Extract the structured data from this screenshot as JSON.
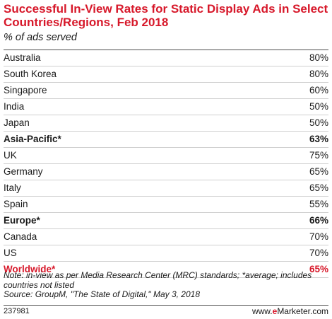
{
  "chart_data": {
    "type": "table",
    "title": "Successful In-View Rates for Static Display Ads in Select Countries/Regions, Feb 2018",
    "subtitle": "% of ads served",
    "rows": [
      {
        "label": "Australia",
        "value": "80%",
        "style": "normal"
      },
      {
        "label": "South Korea",
        "value": "80%",
        "style": "normal"
      },
      {
        "label": "Singapore",
        "value": "60%",
        "style": "normal"
      },
      {
        "label": "India",
        "value": "50%",
        "style": "normal"
      },
      {
        "label": "Japan",
        "value": "50%",
        "style": "normal"
      },
      {
        "label": "Asia-Pacific*",
        "value": "63%",
        "style": "summary"
      },
      {
        "label": "UK",
        "value": "75%",
        "style": "normal"
      },
      {
        "label": "Germany",
        "value": "65%",
        "style": "normal"
      },
      {
        "label": "Italy",
        "value": "65%",
        "style": "normal"
      },
      {
        "label": "Spain",
        "value": "55%",
        "style": "normal"
      },
      {
        "label": "Europe*",
        "value": "66%",
        "style": "summary"
      },
      {
        "label": "Canada",
        "value": "70%",
        "style": "normal"
      },
      {
        "label": "US",
        "value": "70%",
        "style": "normal"
      },
      {
        "label": "Worldwide*",
        "value": "65%",
        "style": "highlight"
      }
    ],
    "note": "Note: in-view as per Media Research Center (MRC) standards; *average; includes countries not listed",
    "source": "Source: GroupM, \"The State of Digital,\" May 3, 2018"
  },
  "footer": {
    "chart_id": "237981",
    "brand_prefix": "www.",
    "brand_e": "e",
    "brand_suffix": "Marketer.com"
  },
  "colors": {
    "accent": "#d7182a",
    "text": "#1a1a1a",
    "rule": "#cfcfcf"
  }
}
